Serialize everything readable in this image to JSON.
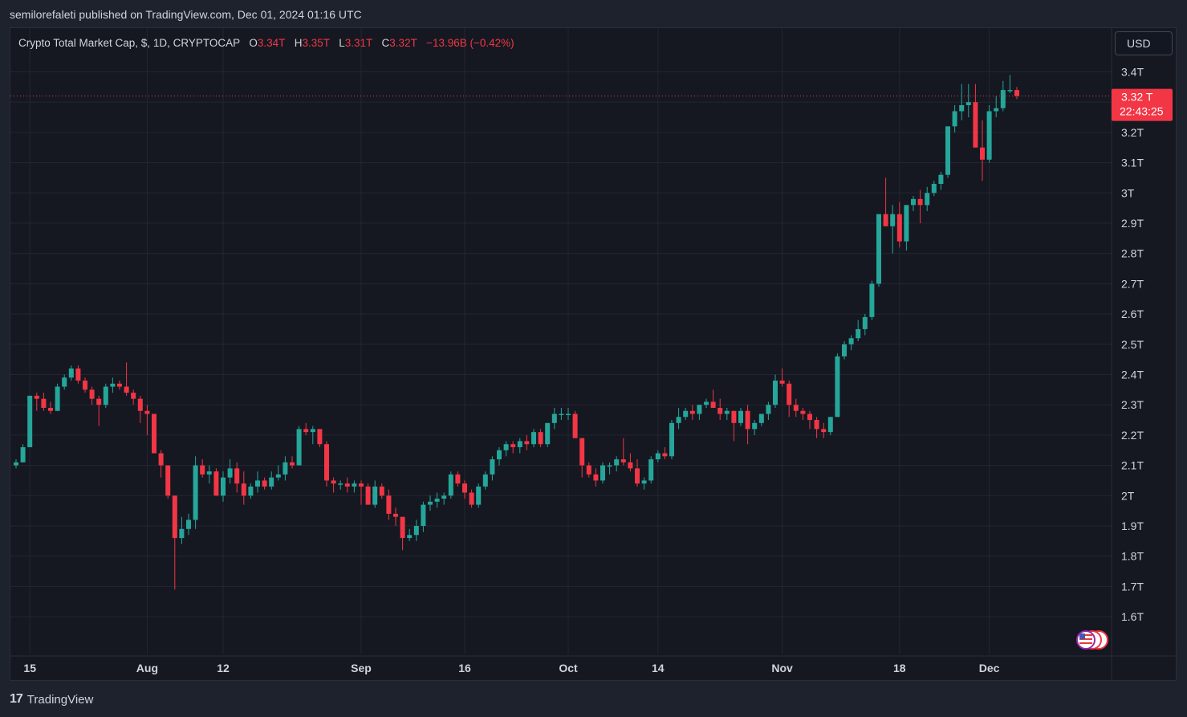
{
  "header": {
    "published_line": "semilorefaleti published on TradingView.com, Dec 01, 2024 01:16 UTC"
  },
  "legend": {
    "symbol": "Crypto Total Market Cap, $, 1D, CRYPTOCAP",
    "o_label": "O",
    "o_value": "3.34T",
    "h_label": "H",
    "h_value": "3.35T",
    "l_label": "L",
    "l_value": "3.31T",
    "c_label": "C",
    "c_value": "3.32T",
    "change": "−13.96B (−0.42%)"
  },
  "currency_button": "USD",
  "price_tag": {
    "price": "3.32 T",
    "countdown": "22:43:25"
  },
  "footer": {
    "brand": "TradingView",
    "logo_mark": "17"
  },
  "colors": {
    "up": "#26a69a",
    "down": "#f23645",
    "grid": "#232632",
    "background": "#151821",
    "axis_text": "#d1d4dc"
  },
  "chart_data": {
    "type": "candlestick",
    "title": "Crypto Total Market Cap, $, 1D, CRYPTOCAP",
    "y_unit": "T",
    "ylim": [
      1.52,
      3.47
    ],
    "y_ticks": [
      1.6,
      1.7,
      1.8,
      1.9,
      2.0,
      2.1,
      2.2,
      2.3,
      2.4,
      2.5,
      2.6,
      2.7,
      2.8,
      2.9,
      3.0,
      3.1,
      3.2,
      3.3,
      3.4
    ],
    "y_tick_labels": [
      "1.6T",
      "1.7T",
      "1.8T",
      "1.9T",
      "2T",
      "2.1T",
      "2.2T",
      "2.3T",
      "2.4T",
      "2.5T",
      "2.6T",
      "2.7T",
      "2.8T",
      "2.9T",
      "3T",
      "3.1T",
      "3.2T",
      "3.3T",
      "3.4T"
    ],
    "x_start": "2024-07-13",
    "x_ticks": [
      {
        "label": "15",
        "date": "2024-07-15"
      },
      {
        "label": "Aug",
        "date": "2024-08-01"
      },
      {
        "label": "12",
        "date": "2024-08-12"
      },
      {
        "label": "Sep",
        "date": "2024-09-01"
      },
      {
        "label": "16",
        "date": "2024-09-16"
      },
      {
        "label": "Oct",
        "date": "2024-10-01"
      },
      {
        "label": "14",
        "date": "2024-10-14"
      },
      {
        "label": "Nov",
        "date": "2024-11-01"
      },
      {
        "label": "18",
        "date": "2024-11-18"
      },
      {
        "label": "Dec",
        "date": "2024-12-01"
      }
    ],
    "last_price": 3.32,
    "grid": true,
    "ohlc": [
      [
        2.1,
        2.12,
        2.09,
        2.11
      ],
      [
        2.11,
        2.17,
        2.11,
        2.16
      ],
      [
        2.16,
        2.33,
        2.16,
        2.33
      ],
      [
        2.33,
        2.34,
        2.28,
        2.32
      ],
      [
        2.32,
        2.34,
        2.28,
        2.29
      ],
      [
        2.29,
        2.31,
        2.27,
        2.28
      ],
      [
        2.28,
        2.37,
        2.28,
        2.36
      ],
      [
        2.36,
        2.4,
        2.35,
        2.39
      ],
      [
        2.39,
        2.43,
        2.38,
        2.42
      ],
      [
        2.42,
        2.43,
        2.37,
        2.38
      ],
      [
        2.38,
        2.39,
        2.34,
        2.35
      ],
      [
        2.35,
        2.36,
        2.3,
        2.32
      ],
      [
        2.32,
        2.33,
        2.23,
        2.3
      ],
      [
        2.3,
        2.37,
        2.29,
        2.36
      ],
      [
        2.36,
        2.39,
        2.34,
        2.37
      ],
      [
        2.37,
        2.38,
        2.35,
        2.36
      ],
      [
        2.36,
        2.44,
        2.33,
        2.34
      ],
      [
        2.34,
        2.35,
        2.3,
        2.32
      ],
      [
        2.32,
        2.33,
        2.24,
        2.28
      ],
      [
        2.28,
        2.3,
        2.2,
        2.27
      ],
      [
        2.27,
        2.27,
        2.14,
        2.14
      ],
      [
        2.14,
        2.15,
        2.06,
        2.1
      ],
      [
        2.1,
        2.1,
        1.99,
        2.0
      ],
      [
        2.0,
        2.0,
        1.69,
        1.86
      ],
      [
        1.86,
        1.93,
        1.84,
        1.89
      ],
      [
        1.89,
        1.94,
        1.87,
        1.92
      ],
      [
        1.92,
        2.13,
        1.89,
        2.1
      ],
      [
        2.1,
        2.12,
        2.06,
        2.07
      ],
      [
        2.07,
        2.1,
        2.04,
        2.08
      ],
      [
        2.08,
        2.09,
        2.0,
        2.0
      ],
      [
        2.0,
        2.08,
        1.98,
        2.06
      ],
      [
        2.06,
        2.12,
        2.04,
        2.09
      ],
      [
        2.09,
        2.11,
        2.01,
        2.04
      ],
      [
        2.04,
        2.08,
        1.97,
        2.0
      ],
      [
        2.0,
        2.04,
        1.99,
        2.03
      ],
      [
        2.03,
        2.08,
        2.01,
        2.05
      ],
      [
        2.05,
        2.06,
        2.02,
        2.03
      ],
      [
        2.03,
        2.08,
        2.02,
        2.06
      ],
      [
        2.06,
        2.1,
        2.05,
        2.07
      ],
      [
        2.07,
        2.13,
        2.05,
        2.11
      ],
      [
        2.11,
        2.13,
        2.09,
        2.1
      ],
      [
        2.1,
        2.23,
        2.1,
        2.22
      ],
      [
        2.22,
        2.24,
        2.2,
        2.21
      ],
      [
        2.21,
        2.23,
        2.17,
        2.22
      ],
      [
        2.22,
        2.22,
        2.16,
        2.17
      ],
      [
        2.17,
        2.18,
        2.03,
        2.05
      ],
      [
        2.05,
        2.06,
        2.01,
        2.04
      ],
      [
        2.04,
        2.05,
        2.02,
        2.04
      ],
      [
        2.04,
        2.06,
        2.01,
        2.03
      ],
      [
        2.03,
        2.05,
        2.01,
        2.04
      ],
      [
        2.04,
        2.05,
        1.97,
        2.03
      ],
      [
        2.03,
        2.04,
        1.97,
        1.97
      ],
      [
        1.97,
        2.05,
        1.96,
        2.03
      ],
      [
        2.03,
        2.04,
        1.99,
        2.0
      ],
      [
        2.0,
        2.02,
        1.92,
        1.94
      ],
      [
        1.94,
        1.96,
        1.9,
        1.93
      ],
      [
        1.93,
        1.93,
        1.82,
        1.86
      ],
      [
        1.86,
        1.89,
        1.85,
        1.87
      ],
      [
        1.87,
        1.92,
        1.85,
        1.9
      ],
      [
        1.9,
        1.98,
        1.88,
        1.97
      ],
      [
        1.97,
        2.0,
        1.95,
        1.98
      ],
      [
        1.98,
        2.01,
        1.96,
        1.99
      ],
      [
        1.99,
        2.01,
        1.97,
        2.0
      ],
      [
        2.0,
        2.08,
        1.99,
        2.07
      ],
      [
        2.07,
        2.08,
        2.03,
        2.04
      ],
      [
        2.04,
        2.05,
        1.99,
        2.01
      ],
      [
        2.01,
        2.02,
        1.96,
        1.97
      ],
      [
        1.97,
        2.04,
        1.96,
        2.03
      ],
      [
        2.03,
        2.08,
        2.02,
        2.07
      ],
      [
        2.07,
        2.13,
        2.05,
        2.12
      ],
      [
        2.12,
        2.16,
        2.1,
        2.15
      ],
      [
        2.15,
        2.18,
        2.13,
        2.17
      ],
      [
        2.17,
        2.18,
        2.14,
        2.16
      ],
      [
        2.16,
        2.19,
        2.14,
        2.18
      ],
      [
        2.18,
        2.2,
        2.15,
        2.17
      ],
      [
        2.17,
        2.22,
        2.16,
        2.21
      ],
      [
        2.21,
        2.22,
        2.16,
        2.17
      ],
      [
        2.17,
        2.24,
        2.16,
        2.24
      ],
      [
        2.24,
        2.29,
        2.22,
        2.27
      ],
      [
        2.27,
        2.29,
        2.25,
        2.27
      ],
      [
        2.27,
        2.29,
        2.25,
        2.27
      ],
      [
        2.27,
        2.28,
        2.19,
        2.19
      ],
      [
        2.19,
        2.19,
        2.06,
        2.1
      ],
      [
        2.1,
        2.11,
        2.06,
        2.07
      ],
      [
        2.07,
        2.09,
        2.03,
        2.05
      ],
      [
        2.05,
        2.11,
        2.04,
        2.1
      ],
      [
        2.1,
        2.11,
        2.07,
        2.1
      ],
      [
        2.1,
        2.13,
        2.08,
        2.12
      ],
      [
        2.12,
        2.19,
        2.1,
        2.11
      ],
      [
        2.11,
        2.14,
        2.08,
        2.09
      ],
      [
        2.09,
        2.12,
        2.03,
        2.04
      ],
      [
        2.04,
        2.06,
        2.02,
        2.05
      ],
      [
        2.05,
        2.13,
        2.04,
        2.12
      ],
      [
        2.12,
        2.15,
        2.11,
        2.14
      ],
      [
        2.14,
        2.16,
        2.12,
        2.13
      ],
      [
        2.13,
        2.25,
        2.12,
        2.24
      ],
      [
        2.24,
        2.29,
        2.22,
        2.26
      ],
      [
        2.26,
        2.29,
        2.25,
        2.28
      ],
      [
        2.28,
        2.3,
        2.25,
        2.27
      ],
      [
        2.27,
        2.3,
        2.25,
        2.3
      ],
      [
        2.3,
        2.32,
        2.29,
        2.31
      ],
      [
        2.31,
        2.35,
        2.29,
        2.29
      ],
      [
        2.29,
        2.32,
        2.25,
        2.27
      ],
      [
        2.27,
        2.29,
        2.25,
        2.28
      ],
      [
        2.28,
        2.28,
        2.18,
        2.24
      ],
      [
        2.24,
        2.29,
        2.23,
        2.28
      ],
      [
        2.28,
        2.3,
        2.17,
        2.22
      ],
      [
        2.22,
        2.25,
        2.2,
        2.24
      ],
      [
        2.24,
        2.27,
        2.23,
        2.27
      ],
      [
        2.27,
        2.31,
        2.25,
        2.3
      ],
      [
        2.3,
        2.4,
        2.29,
        2.38
      ],
      [
        2.38,
        2.42,
        2.36,
        2.37
      ],
      [
        2.37,
        2.38,
        2.26,
        2.3
      ],
      [
        2.3,
        2.32,
        2.26,
        2.28
      ],
      [
        2.28,
        2.29,
        2.25,
        2.27
      ],
      [
        2.27,
        2.28,
        2.22,
        2.25
      ],
      [
        2.25,
        2.26,
        2.19,
        2.22
      ],
      [
        2.22,
        2.24,
        2.19,
        2.21
      ],
      [
        2.21,
        2.26,
        2.2,
        2.26
      ],
      [
        2.26,
        2.47,
        2.26,
        2.46
      ],
      [
        2.46,
        2.51,
        2.45,
        2.5
      ],
      [
        2.5,
        2.53,
        2.48,
        2.52
      ],
      [
        2.52,
        2.58,
        2.51,
        2.55
      ],
      [
        2.55,
        2.6,
        2.53,
        2.59
      ],
      [
        2.59,
        2.71,
        2.58,
        2.7
      ],
      [
        2.7,
        2.93,
        2.69,
        2.93
      ],
      [
        2.93,
        3.05,
        2.89,
        2.89
      ],
      [
        2.89,
        2.96,
        2.8,
        2.93
      ],
      [
        2.93,
        2.97,
        2.82,
        2.84
      ],
      [
        2.84,
        2.96,
        2.81,
        2.96
      ],
      [
        2.96,
        2.99,
        2.94,
        2.98
      ],
      [
        2.98,
        3.01,
        2.9,
        2.96
      ],
      [
        2.96,
        3.02,
        2.94,
        3.0
      ],
      [
        3.0,
        3.04,
        2.99,
        3.03
      ],
      [
        3.03,
        3.07,
        3.01,
        3.06
      ],
      [
        3.06,
        3.22,
        3.05,
        3.22
      ],
      [
        3.22,
        3.29,
        3.2,
        3.27
      ],
      [
        3.27,
        3.36,
        3.24,
        3.29
      ],
      [
        3.29,
        3.36,
        3.25,
        3.3
      ],
      [
        3.3,
        3.36,
        3.15,
        3.15
      ],
      [
        3.15,
        3.24,
        3.04,
        3.11
      ],
      [
        3.11,
        3.29,
        3.1,
        3.27
      ],
      [
        3.27,
        3.32,
        3.25,
        3.28
      ],
      [
        3.28,
        3.37,
        3.27,
        3.34
      ],
      [
        3.34,
        3.39,
        3.33,
        3.34
      ],
      [
        3.34,
        3.35,
        3.31,
        3.32
      ]
    ]
  }
}
